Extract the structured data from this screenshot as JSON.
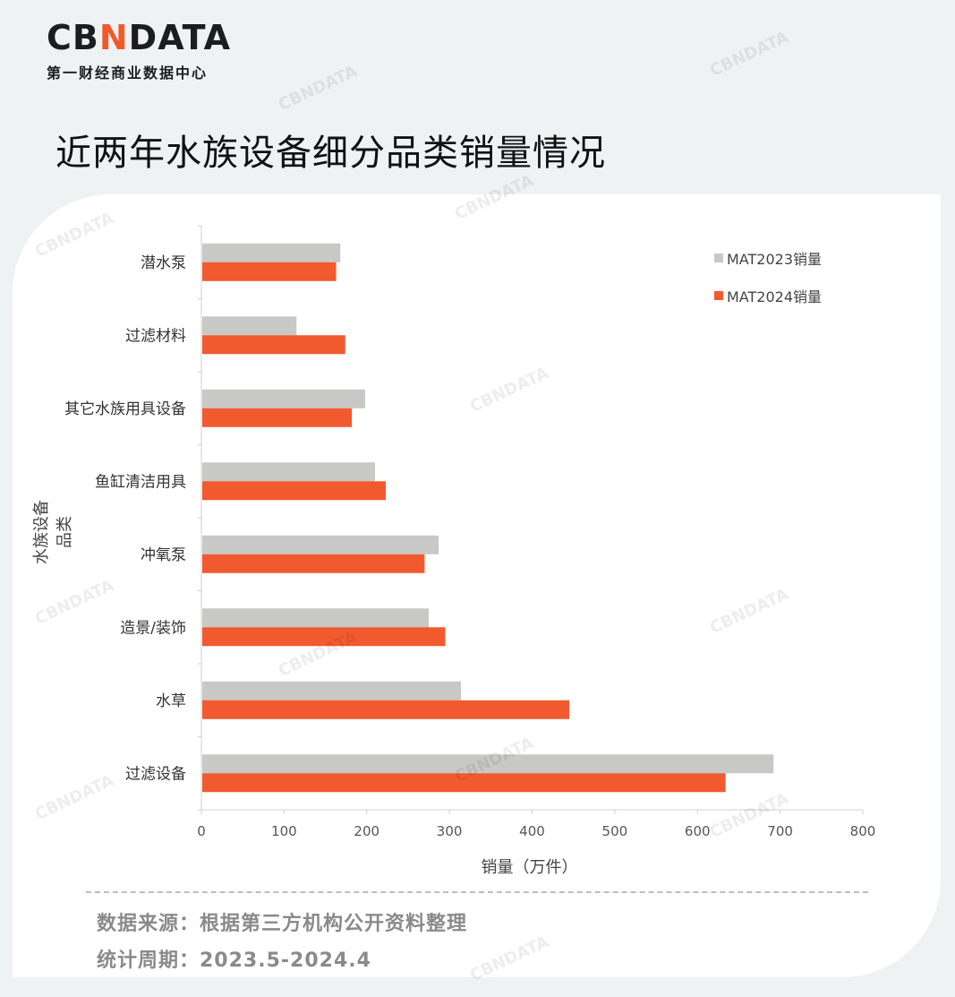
{
  "logo": {
    "brand_pre": "CB",
    "brand_accent": "N",
    "brand_post": "DATA",
    "subtitle": "第一财经商业数据中心"
  },
  "title": "近两年水族设备细分品类销量情况",
  "footer": {
    "source": "数据来源：根据第三方机构公开资料整理",
    "period": "统计周期：2023.5-2024.4"
  },
  "watermark": "CBNDATA",
  "colors": {
    "accent": "#f05a28",
    "series2023": "#c8c8c6",
    "series2024": "#f15a2f"
  },
  "chart_data": {
    "type": "bar",
    "orientation": "horizontal",
    "categories": [
      "潜水泵",
      "过滤材料",
      "其它水族用具设备",
      "鱼缸清洁用具",
      "冲氧泵",
      "造景/装饰",
      "水草",
      "过滤设备"
    ],
    "series": [
      {
        "name": "MAT2023销量",
        "values": [
          168,
          115,
          198,
          210,
          287,
          275,
          314,
          692
        ]
      },
      {
        "name": "MAT2024销量",
        "values": [
          163,
          174,
          182,
          223,
          270,
          295,
          445,
          634
        ]
      }
    ],
    "xlabel": "销量（万件）",
    "ylabel": "水族设备品类",
    "xlim": [
      0,
      800
    ],
    "xticks": [
      0,
      100,
      200,
      300,
      400,
      500,
      600,
      700,
      800
    ],
    "legend": "top-right",
    "grid": false
  }
}
